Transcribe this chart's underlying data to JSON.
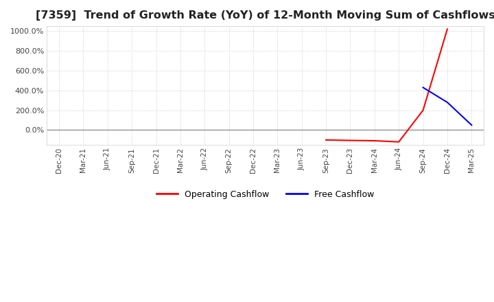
{
  "title": "[7359]  Trend of Growth Rate (YoY) of 12-Month Moving Sum of Cashflows",
  "title_fontsize": 11.5,
  "ylim": [
    -150,
    1050
  ],
  "yticks": [
    0,
    200,
    400,
    600,
    800,
    1000
  ],
  "ytick_labels": [
    "0.0%",
    "200.0%",
    "400.0%",
    "600.0%",
    "800.0%",
    "1000.0%"
  ],
  "background_color": "#ffffff",
  "grid_color": "#cccccc",
  "zero_line_color": "#888888",
  "operating_color": "#ff0000",
  "free_color": "#0000ff",
  "x_dates": [
    "Dec-20",
    "Mar-21",
    "Jun-21",
    "Sep-21",
    "Dec-21",
    "Mar-22",
    "Jun-22",
    "Sep-22",
    "Dec-22",
    "Mar-23",
    "Jun-23",
    "Sep-23",
    "Dec-23",
    "Mar-24",
    "Jun-24",
    "Sep-24",
    "Dec-24",
    "Mar-25"
  ],
  "op_xi": [
    11,
    12,
    13,
    14,
    15,
    16
  ],
  "op_yi": [
    -100,
    -105,
    -108,
    -120,
    200,
    1020
  ],
  "fr_xi": [
    15,
    16,
    17
  ],
  "fr_yi": [
    430,
    280,
    50
  ],
  "legend_labels": [
    "Operating Cashflow",
    "Free Cashflow"
  ]
}
